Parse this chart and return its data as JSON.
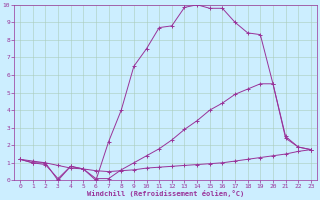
{
  "xlabel": "Windchill (Refroidissement éolien,°C)",
  "background_color": "#cceeff",
  "grid_color": "#aaccbb",
  "line_color": "#993399",
  "xlim": [
    -0.5,
    23.5
  ],
  "ylim": [
    0,
    10
  ],
  "xticks": [
    0,
    1,
    2,
    3,
    4,
    5,
    6,
    7,
    8,
    9,
    10,
    11,
    12,
    13,
    14,
    15,
    16,
    17,
    18,
    19,
    20,
    21,
    22,
    23
  ],
  "yticks": [
    0,
    1,
    2,
    3,
    4,
    5,
    6,
    7,
    8,
    9,
    10
  ],
  "line1_x": [
    0,
    1,
    2,
    3,
    4,
    5,
    6,
    7,
    8,
    9,
    10,
    11,
    12,
    13,
    14,
    15,
    16,
    17,
    18,
    19,
    20,
    21,
    22,
    23
  ],
  "line1_y": [
    1.2,
    1.1,
    1.0,
    0.85,
    0.7,
    0.65,
    0.55,
    0.5,
    0.55,
    0.6,
    0.7,
    0.75,
    0.8,
    0.85,
    0.9,
    0.95,
    1.0,
    1.1,
    1.2,
    1.3,
    1.4,
    1.5,
    1.65,
    1.75
  ],
  "line2_x": [
    0,
    1,
    2,
    3,
    4,
    5,
    6,
    7,
    8,
    9,
    10,
    11,
    12,
    13,
    14,
    15,
    16,
    17,
    18,
    19,
    20,
    21,
    22,
    23
  ],
  "line2_y": [
    1.2,
    1.0,
    1.0,
    0.0,
    0.8,
    0.65,
    0.0,
    2.2,
    4.0,
    6.5,
    7.5,
    8.7,
    8.8,
    9.85,
    10.0,
    9.8,
    9.8,
    9.0,
    8.4,
    8.3,
    5.5,
    2.5,
    1.9,
    1.75
  ],
  "line3_x": [
    0,
    1,
    2,
    3,
    4,
    5,
    6,
    7,
    8,
    9,
    10,
    11,
    12,
    13,
    14,
    15,
    16,
    17,
    18,
    19,
    20,
    21,
    22,
    23
  ],
  "line3_y": [
    1.2,
    1.0,
    0.9,
    0.1,
    0.8,
    0.65,
    0.1,
    0.1,
    0.6,
    1.0,
    1.4,
    1.8,
    2.3,
    2.9,
    3.4,
    4.0,
    4.4,
    4.9,
    5.2,
    5.5,
    5.5,
    2.4,
    1.9,
    1.75
  ]
}
